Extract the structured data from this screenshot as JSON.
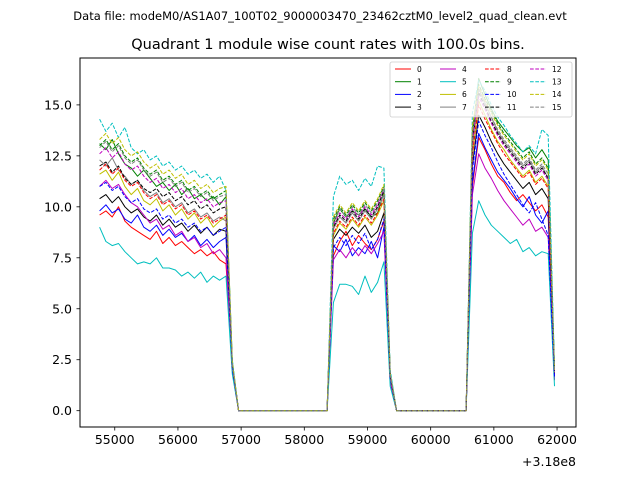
{
  "suptitle": "Data file: modeM0/AS1A07_100T02_9000003470_23462cztM0_level2_quad_clean.evt",
  "chart_data": {
    "type": "line",
    "title": "Quadrant 1 module wise count rates with 100.0s bins.",
    "xlabel": "",
    "ylabel": "",
    "x_offset_label": "+3.18e8",
    "xlim": [
      54450,
      62300
    ],
    "ylim": [
      -0.8,
      17.3
    ],
    "x_ticks": [
      55000,
      56000,
      57000,
      58000,
      59000,
      60000,
      61000,
      62000
    ],
    "x_tick_labels": [
      "55000",
      "56000",
      "57000",
      "58000",
      "59000",
      "60000",
      "61000",
      "62000"
    ],
    "y_ticks": [
      0,
      2.5,
      5,
      7.5,
      10,
      12.5,
      15
    ],
    "y_tick_labels": [
      "0.0",
      "2.5",
      "5.0",
      "7.5",
      "10.0",
      "12.5",
      "15.0"
    ],
    "legend_position": "top-right",
    "x": [
      54760,
      54860,
      54960,
      55060,
      55160,
      55260,
      55360,
      55460,
      55560,
      55660,
      55760,
      55860,
      55960,
      56060,
      56160,
      56260,
      56360,
      56460,
      56560,
      56660,
      56760,
      56860,
      56960,
      57060,
      58360,
      58460,
      58560,
      58660,
      58760,
      58860,
      58960,
      59060,
      59160,
      59260,
      59360,
      59460,
      60560,
      60660,
      60760,
      60860,
      60960,
      61060,
      61160,
      61260,
      61360,
      61460,
      61560,
      61660,
      61760,
      61860,
      61960
    ],
    "series": [
      {
        "name": "0",
        "color": "#ff0000",
        "dash": "solid",
        "values": [
          9.6,
          9.8,
          9.5,
          10.0,
          9.3,
          9.0,
          8.8,
          8.6,
          8.4,
          8.8,
          8.2,
          8.5,
          8.1,
          8.3,
          8.0,
          7.7,
          7.9,
          7.6,
          7.8,
          7.4,
          7.2,
          2.0,
          0.0,
          0.0,
          0.0,
          7.6,
          8.3,
          8.8,
          8.1,
          8.6,
          8.2,
          7.9,
          8.4,
          9.3,
          1.5,
          0.0,
          0.0,
          11.0,
          13.4,
          12.8,
          12.1,
          11.5,
          11.2,
          10.7,
          10.3,
          10.6,
          10.2,
          9.8,
          10.1,
          9.5,
          1.5
        ]
      },
      {
        "name": "1",
        "color": "#008000",
        "dash": "solid",
        "values": [
          13.1,
          12.8,
          13.3,
          12.6,
          12.1,
          11.9,
          11.5,
          11.8,
          11.4,
          11.0,
          11.2,
          10.8,
          11.1,
          10.6,
          10.9,
          10.4,
          10.6,
          10.3,
          10.5,
          10.1,
          10.5,
          2.3,
          0.0,
          0.0,
          0.0,
          9.2,
          9.9,
          9.5,
          9.8,
          9.6,
          9.9,
          9.5,
          9.7,
          10.7,
          1.8,
          0.0,
          0.0,
          13.5,
          16.3,
          15.5,
          14.8,
          14.2,
          13.8,
          13.4,
          13.0,
          12.7,
          12.9,
          12.4,
          12.8,
          12.3,
          2.0
        ]
      },
      {
        "name": "2",
        "color": "#0000ff",
        "dash": "solid",
        "values": [
          9.8,
          10.1,
          9.7,
          9.9,
          9.4,
          9.2,
          9.6,
          9.0,
          8.8,
          9.1,
          8.6,
          8.9,
          8.5,
          8.7,
          8.3,
          8.6,
          8.1,
          8.4,
          8.0,
          8.3,
          8.5,
          2.1,
          0.0,
          0.0,
          0.0,
          8.1,
          7.8,
          8.4,
          7.6,
          8.0,
          7.7,
          8.3,
          7.5,
          9.0,
          1.6,
          0.0,
          0.0,
          11.2,
          13.6,
          12.9,
          12.3,
          11.7,
          11.3,
          10.9,
          10.4,
          10.0,
          10.5,
          9.6,
          9.2,
          9.8,
          1.7
        ]
      },
      {
        "name": "3",
        "color": "#000000",
        "dash": "solid",
        "values": [
          10.4,
          10.6,
          10.2,
          10.5,
          10.0,
          9.7,
          9.9,
          9.5,
          9.3,
          9.6,
          9.1,
          9.4,
          9.0,
          9.2,
          8.8,
          9.1,
          8.7,
          9.0,
          8.6,
          8.9,
          8.8,
          2.2,
          0.0,
          0.0,
          0.0,
          8.4,
          8.9,
          8.6,
          9.0,
          8.7,
          9.1,
          8.5,
          8.8,
          9.7,
          1.6,
          0.0,
          0.0,
          12.0,
          14.5,
          13.9,
          13.2,
          12.6,
          12.1,
          11.7,
          11.3,
          10.9,
          11.2,
          10.6,
          10.9,
          10.4,
          1.8
        ]
      },
      {
        "name": "4",
        "color": "#bf00bf",
        "dash": "solid",
        "values": [
          11.0,
          11.3,
          10.9,
          11.1,
          10.6,
          10.2,
          10.0,
          9.6,
          9.2,
          9.4,
          8.9,
          9.1,
          8.6,
          8.8,
          8.3,
          8.5,
          8.0,
          8.2,
          7.7,
          7.9,
          7.5,
          2.0,
          0.0,
          0.0,
          0.0,
          7.4,
          7.9,
          7.5,
          8.0,
          7.6,
          8.1,
          7.7,
          8.2,
          8.8,
          1.4,
          0.0,
          0.0,
          10.6,
          12.6,
          11.9,
          11.4,
          10.8,
          10.3,
          9.9,
          9.5,
          9.1,
          9.4,
          8.8,
          9.0,
          8.5,
          1.5
        ]
      },
      {
        "name": "5",
        "color": "#00bfbf",
        "dash": "solid",
        "values": [
          9.0,
          8.3,
          8.1,
          8.2,
          7.8,
          7.5,
          7.2,
          7.3,
          7.2,
          7.5,
          7.0,
          7.0,
          6.9,
          6.6,
          6.8,
          6.5,
          6.8,
          6.3,
          6.6,
          6.4,
          6.6,
          1.8,
          0.0,
          0.0,
          0.0,
          5.3,
          6.2,
          6.2,
          6.1,
          5.7,
          6.6,
          5.8,
          6.3,
          7.3,
          1.2,
          0.0,
          0.0,
          8.7,
          10.3,
          9.6,
          9.1,
          8.8,
          8.5,
          8.2,
          8.4,
          7.8,
          8.0,
          7.6,
          7.8,
          7.7,
          1.2
        ]
      },
      {
        "name": "6",
        "color": "#bfbf00",
        "dash": "solid",
        "values": [
          11.6,
          11.8,
          11.3,
          11.7,
          11.0,
          10.6,
          10.9,
          10.3,
          10.1,
          10.4,
          9.8,
          10.1,
          9.6,
          9.9,
          9.4,
          9.7,
          9.2,
          9.5,
          9.0,
          9.3,
          9.5,
          2.3,
          0.0,
          0.0,
          0.0,
          8.6,
          9.2,
          8.9,
          9.4,
          9.0,
          9.5,
          9.1,
          9.6,
          10.3,
          1.7,
          0.0,
          0.0,
          12.5,
          15.2,
          14.5,
          13.8,
          13.2,
          12.8,
          12.3,
          11.9,
          11.5,
          11.8,
          11.2,
          11.5,
          11.0,
          1.9
        ]
      },
      {
        "name": "7",
        "color": "#808080",
        "dash": "solid",
        "values": [
          12.3,
          12.0,
          12.4,
          11.8,
          11.5,
          11.1,
          11.3,
          10.8,
          10.5,
          10.7,
          10.2,
          10.4,
          10.0,
          10.2,
          9.7,
          9.9,
          9.5,
          9.7,
          9.3,
          9.5,
          9.3,
          2.2,
          0.0,
          0.0,
          0.0,
          8.9,
          9.5,
          9.2,
          9.7,
          9.3,
          9.8,
          9.4,
          9.9,
          10.6,
          1.7,
          0.0,
          0.0,
          13.0,
          15.8,
          15.1,
          14.4,
          13.7,
          13.2,
          12.8,
          12.4,
          12.0,
          12.3,
          11.7,
          12.0,
          11.4,
          1.9
        ]
      },
      {
        "name": "8",
        "color": "#ff0000",
        "dash": "dashed",
        "values": [
          11.8,
          12.1,
          11.6,
          11.9,
          11.3,
          11.0,
          11.2,
          10.7,
          10.4,
          10.6,
          10.1,
          10.3,
          9.9,
          10.1,
          9.6,
          9.8,
          9.4,
          9.6,
          9.2,
          9.4,
          9.6,
          2.2,
          0.0,
          0.0,
          0.0,
          8.7,
          9.3,
          9.0,
          9.5,
          9.1,
          9.6,
          9.2,
          9.7,
          10.4,
          1.7,
          0.0,
          0.0,
          12.6,
          15.0,
          14.3,
          13.7,
          13.1,
          12.6,
          12.2,
          11.8,
          11.4,
          11.7,
          11.1,
          11.4,
          10.9,
          1.8
        ]
      },
      {
        "name": "9",
        "color": "#008000",
        "dash": "dashed",
        "values": [
          13.0,
          13.3,
          12.8,
          13.1,
          12.5,
          12.2,
          12.4,
          11.9,
          11.6,
          11.8,
          11.3,
          11.5,
          11.1,
          11.3,
          10.8,
          11.0,
          10.6,
          10.8,
          10.4,
          10.6,
          10.8,
          2.4,
          0.0,
          0.0,
          0.0,
          9.4,
          10.0,
          9.6,
          10.1,
          9.7,
          10.2,
          9.8,
          10.3,
          11.0,
          1.8,
          0.0,
          0.0,
          13.8,
          16.0,
          15.3,
          14.7,
          14.1,
          13.6,
          13.2,
          12.8,
          12.4,
          12.7,
          12.1,
          12.4,
          11.9,
          2.0
        ]
      },
      {
        "name": "10",
        "color": "#0000ff",
        "dash": "dashed",
        "values": [
          11.0,
          11.2,
          10.8,
          11.0,
          10.5,
          10.2,
          10.4,
          9.9,
          9.7,
          9.9,
          9.4,
          9.6,
          9.2,
          9.4,
          9.0,
          9.2,
          8.8,
          9.0,
          8.6,
          8.8,
          9.0,
          2.1,
          0.0,
          0.0,
          0.0,
          8.0,
          8.5,
          8.1,
          8.6,
          8.2,
          8.7,
          7.9,
          8.4,
          9.4,
          1.6,
          0.0,
          0.0,
          11.8,
          14.2,
          13.5,
          12.9,
          12.2,
          11.6,
          11.1,
          10.6,
          10.1,
          9.7,
          10.2,
          9.4,
          8.6,
          1.6
        ]
      },
      {
        "name": "11",
        "color": "#000000",
        "dash": "dashed",
        "values": [
          12.0,
          12.2,
          11.7,
          12.0,
          11.4,
          11.1,
          11.3,
          10.9,
          10.7,
          10.9,
          10.5,
          10.7,
          10.3,
          10.5,
          10.1,
          10.3,
          9.9,
          10.1,
          9.7,
          9.9,
          10.0,
          2.3,
          0.0,
          0.0,
          0.0,
          9.0,
          9.6,
          9.3,
          9.8,
          9.4,
          9.9,
          9.5,
          10.0,
          10.8,
          1.7,
          0.0,
          0.0,
          13.2,
          15.6,
          14.9,
          14.2,
          13.6,
          13.1,
          12.7,
          12.3,
          11.9,
          12.2,
          11.6,
          11.9,
          11.4,
          1.9
        ]
      },
      {
        "name": "12",
        "color": "#bf00bf",
        "dash": "dashed",
        "values": [
          12.6,
          12.9,
          12.4,
          12.7,
          12.1,
          11.8,
          12.0,
          11.5,
          11.2,
          11.4,
          10.9,
          11.1,
          10.7,
          10.9,
          10.4,
          10.6,
          10.2,
          10.4,
          10.0,
          10.2,
          10.3,
          2.3,
          0.0,
          0.0,
          0.0,
          9.1,
          9.7,
          9.4,
          9.9,
          9.5,
          10.0,
          9.6,
          10.1,
          10.9,
          1.7,
          0.0,
          0.0,
          13.3,
          15.4,
          14.8,
          14.1,
          13.5,
          13.0,
          12.6,
          12.2,
          11.8,
          12.1,
          11.5,
          11.8,
          11.3,
          1.9
        ]
      },
      {
        "name": "13",
        "color": "#00bfbf",
        "dash": "dashed",
        "values": [
          14.3,
          13.7,
          14.1,
          13.4,
          13.9,
          12.9,
          12.6,
          12.8,
          12.3,
          12.5,
          12.0,
          12.2,
          11.8,
          12.0,
          11.6,
          11.8,
          11.4,
          11.6,
          11.2,
          11.5,
          10.8,
          2.5,
          0.0,
          0.0,
          0.0,
          10.5,
          11.5,
          11.1,
          11.3,
          10.8,
          11.4,
          11.0,
          12.0,
          11.9,
          2.0,
          0.0,
          0.0,
          14.6,
          16.2,
          15.7,
          15.0,
          14.4,
          14.0,
          13.5,
          13.1,
          12.7,
          13.0,
          12.6,
          13.8,
          13.5,
          2.1
        ]
      },
      {
        "name": "14",
        "color": "#bfbf00",
        "dash": "dashed",
        "values": [
          13.3,
          13.6,
          13.1,
          13.4,
          12.8,
          12.5,
          12.7,
          12.2,
          11.9,
          12.1,
          11.6,
          11.8,
          11.4,
          11.6,
          11.1,
          11.3,
          10.9,
          11.1,
          10.7,
          10.9,
          11.0,
          2.4,
          0.0,
          0.0,
          0.0,
          9.5,
          10.1,
          9.7,
          10.2,
          9.8,
          10.3,
          9.9,
          10.4,
          11.1,
          1.8,
          0.0,
          0.0,
          14.0,
          15.9,
          15.2,
          14.6,
          14.0,
          13.5,
          13.1,
          12.7,
          12.3,
          12.6,
          12.0,
          12.3,
          11.8,
          2.0
        ]
      },
      {
        "name": "15",
        "color": "#808080",
        "dash": "dashed",
        "values": [
          12.9,
          13.2,
          12.7,
          13.0,
          12.4,
          12.1,
          12.3,
          11.8,
          11.5,
          11.7,
          11.2,
          11.4,
          11.0,
          11.2,
          10.7,
          10.9,
          10.5,
          10.7,
          10.3,
          10.5,
          10.6,
          2.3,
          0.0,
          0.0,
          0.0,
          9.3,
          9.9,
          9.5,
          10.0,
          9.6,
          10.1,
          9.7,
          10.2,
          10.9,
          1.8,
          0.0,
          0.0,
          13.6,
          15.7,
          15.0,
          14.4,
          13.8,
          13.3,
          12.9,
          12.5,
          12.1,
          12.4,
          11.8,
          12.1,
          11.6,
          1.9
        ]
      }
    ]
  }
}
